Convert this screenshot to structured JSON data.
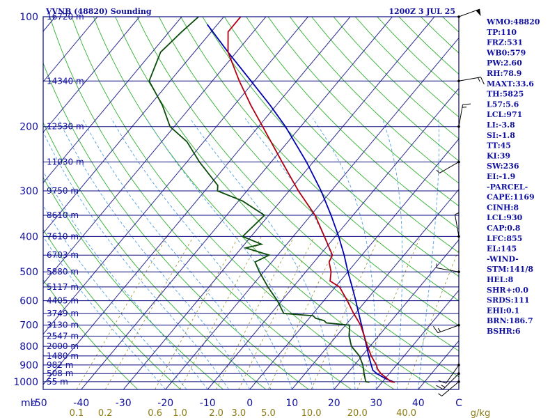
{
  "chart_data": {
    "type": "line",
    "title": "VVNB (48820) Sounding",
    "time_label": "1200Z  3 JUL 25",
    "y_unit": "mb",
    "x_unit": "C",
    "mixing_unit": "g/kg",
    "pressure_ticks": [
      100,
      200,
      300,
      400,
      500,
      600,
      700,
      800,
      900,
      1000
    ],
    "temperature_ticks": [
      "-50",
      "-40",
      "-30",
      "-20",
      "-10",
      "0",
      "10",
      "20",
      "30",
      "40"
    ],
    "mixing_ratio_ticks": [
      {
        "label": "0.1",
        "w": 0.1
      },
      {
        "label": "0.2",
        "w": 0.2
      },
      {
        "label": "0.6",
        "w": 0.6
      },
      {
        "label": "1.0",
        "w": 1.0
      },
      {
        "label": "2.0",
        "w": 2.0
      },
      {
        "label": "3.0",
        "w": 3.0
      },
      {
        "label": "5.0",
        "w": 5.0
      },
      {
        "label": "10.0",
        "w": 10.0
      },
      {
        "label": "20.0",
        "w": 20.0
      },
      {
        "label": "40.0",
        "w": 40.0
      }
    ],
    "height_labels": [
      {
        "p": 100,
        "label": "16720 m"
      },
      {
        "p": 150,
        "label": "14340 m"
      },
      {
        "p": 200,
        "label": "12530 m"
      },
      {
        "p": 250,
        "label": "11030 m"
      },
      {
        "p": 300,
        "label": "9750 m"
      },
      {
        "p": 350,
        "label": "8610 m"
      },
      {
        "p": 400,
        "label": "7610 m"
      },
      {
        "p": 450,
        "label": "6703 m"
      },
      {
        "p": 500,
        "label": "5880 m"
      },
      {
        "p": 550,
        "label": "5117 m"
      },
      {
        "p": 600,
        "label": "4405 m"
      },
      {
        "p": 650,
        "label": "3749 m"
      },
      {
        "p": 700,
        "label": "3130 m"
      },
      {
        "p": 750,
        "label": "2547 m"
      },
      {
        "p": 800,
        "label": "2000 m"
      },
      {
        "p": 850,
        "label": "1480 m"
      },
      {
        "p": 900,
        "label": "982 m"
      },
      {
        "p": 950,
        "label": "508 m"
      },
      {
        "p": 1000,
        "label": "55 m"
      }
    ],
    "temperature_profile": [
      {
        "p": 1004,
        "t": 33.0
      },
      {
        "p": 1000,
        "t": 32.0
      },
      {
        "p": 975,
        "t": 30.0
      },
      {
        "p": 950,
        "t": 28.0
      },
      {
        "p": 925,
        "t": 26.4
      },
      {
        "p": 900,
        "t": 25.2
      },
      {
        "p": 850,
        "t": 22.2
      },
      {
        "p": 800,
        "t": 19.4
      },
      {
        "p": 750,
        "t": 16.6
      },
      {
        "p": 700,
        "t": 13.6
      },
      {
        "p": 650,
        "t": 9.6
      },
      {
        "p": 600,
        "t": 5.6
      },
      {
        "p": 550,
        "t": 1.0
      },
      {
        "p": 530,
        "t": -2.4
      },
      {
        "p": 500,
        "t": -4.0
      },
      {
        "p": 470,
        "t": -6.4
      },
      {
        "p": 450,
        "t": -7.0
      },
      {
        "p": 400,
        "t": -12.6
      },
      {
        "p": 350,
        "t": -19.0
      },
      {
        "p": 300,
        "t": -27.8
      },
      {
        "p": 250,
        "t": -37.4
      },
      {
        "p": 200,
        "t": -49.0
      },
      {
        "p": 175,
        "t": -56.0
      },
      {
        "p": 150,
        "t": -63.6
      },
      {
        "p": 125,
        "t": -72.0
      },
      {
        "p": 110,
        "t": -76.0
      },
      {
        "p": 100,
        "t": -76.0
      }
    ],
    "dewpoint_profile": [
      {
        "p": 1004,
        "td": 27.0
      },
      {
        "p": 1000,
        "td": 26.0
      },
      {
        "p": 950,
        "td": 24.0
      },
      {
        "p": 900,
        "td": 22.0
      },
      {
        "p": 850,
        "td": 19.4
      },
      {
        "p": 800,
        "td": 15.6
      },
      {
        "p": 750,
        "td": 13.0
      },
      {
        "p": 700,
        "td": 11.0
      },
      {
        "p": 690,
        "td": 5.0
      },
      {
        "p": 680,
        "td": 4.0
      },
      {
        "p": 670,
        "td": 1.5
      },
      {
        "p": 660,
        "td": 0.5
      },
      {
        "p": 650,
        "td": -7.0
      },
      {
        "p": 600,
        "td": -11.0
      },
      {
        "p": 550,
        "td": -16.0
      },
      {
        "p": 500,
        "td": -21.0
      },
      {
        "p": 470,
        "td": -24.0
      },
      {
        "p": 450,
        "td": -22.0
      },
      {
        "p": 430,
        "td": -29.0
      },
      {
        "p": 420,
        "td": -26.0
      },
      {
        "p": 400,
        "td": -32.0
      },
      {
        "p": 350,
        "td": -31.0
      },
      {
        "p": 320,
        "td": -39.0
      },
      {
        "p": 300,
        "td": -47.0
      },
      {
        "p": 290,
        "td": -48.0
      },
      {
        "p": 250,
        "td": -57.0
      },
      {
        "p": 220,
        "td": -64.0
      },
      {
        "p": 200,
        "td": -71.0
      },
      {
        "p": 175,
        "td": -77.0
      },
      {
        "p": 150,
        "td": -85.0
      },
      {
        "p": 125,
        "td": -88.0
      },
      {
        "p": 110,
        "td": -87.0
      },
      {
        "p": 100,
        "td": -86.0
      }
    ],
    "parcel_profile": [
      {
        "p": 1004,
        "t": 33.0
      },
      {
        "p": 980,
        "t": 30.0
      },
      {
        "p": 950,
        "t": 27.0
      },
      {
        "p": 930,
        "t": 25.4
      },
      {
        "p": 900,
        "t": 24.0
      },
      {
        "p": 850,
        "t": 21.6
      },
      {
        "p": 800,
        "t": 19.2
      },
      {
        "p": 750,
        "t": 16.6
      },
      {
        "p": 700,
        "t": 13.8
      },
      {
        "p": 650,
        "t": 10.8
      },
      {
        "p": 600,
        "t": 7.6
      },
      {
        "p": 550,
        "t": 4.0
      },
      {
        "p": 500,
        "t": 0.0
      },
      {
        "p": 450,
        "t": -4.2
      },
      {
        "p": 400,
        "t": -9.2
      },
      {
        "p": 350,
        "t": -15.2
      },
      {
        "p": 300,
        "t": -22.4
      },
      {
        "p": 250,
        "t": -31.6
      },
      {
        "p": 200,
        "t": -43.6
      },
      {
        "p": 175,
        "t": -51.4
      },
      {
        "p": 150,
        "t": -60.8
      },
      {
        "p": 125,
        "t": -72.0
      },
      {
        "p": 105,
        "t": -82.4
      }
    ],
    "wind_barbs": [
      {
        "p": 1000,
        "dir": 230,
        "spd": 5
      },
      {
        "p": 950,
        "dir": 225,
        "spd": 15
      },
      {
        "p": 900,
        "dir": 215,
        "spd": 10
      },
      {
        "p": 700,
        "dir": 250,
        "spd": 15
      },
      {
        "p": 500,
        "dir": 280,
        "spd": 5
      },
      {
        "p": 400,
        "dir": 350,
        "spd": 5
      },
      {
        "p": 250,
        "dir": 240,
        "spd": 5
      },
      {
        "p": 200,
        "dir": 10,
        "spd": 15
      },
      {
        "p": 150,
        "dir": 80,
        "spd": 15
      },
      {
        "p": 100,
        "dir": 70,
        "spd": 50
      }
    ],
    "indices": [
      "WMO:48820",
      "TP:110",
      "FRZ:531",
      "WB0:579",
      "PW:2.60",
      "RH:78.9",
      "MAXT:33.6",
      "TH:5825",
      "L57:5.6",
      "LCL:971",
      "LI:-3.8",
      "SI:-1.8",
      "TT:45",
      "KI:39",
      "SW:236",
      "EI:-1.9",
      "-PARCEL-",
      "CAPE:1169",
      "CINH:8",
      "LCL:930",
      "CAP:0.8",
      "LFC:855",
      "EL:145",
      "-WIND-",
      "STM:141/8",
      "HEL:8",
      "SHR+:0.0",
      "SRDS:111",
      "EHI:0.1",
      "BRN:186.7",
      "BSHR:6"
    ],
    "colors": {
      "temperature": "#b00010",
      "dewpoint": "#0a4a0a",
      "parcel": "#0000b0",
      "isobar": "#0a0a80",
      "isotherm": "#2a2a90",
      "dry_adiabat": "#30b030",
      "moist_adiabat": "#50a0e0",
      "mixing_ratio": "#9a8a20",
      "labels": "#1010a0"
    }
  }
}
